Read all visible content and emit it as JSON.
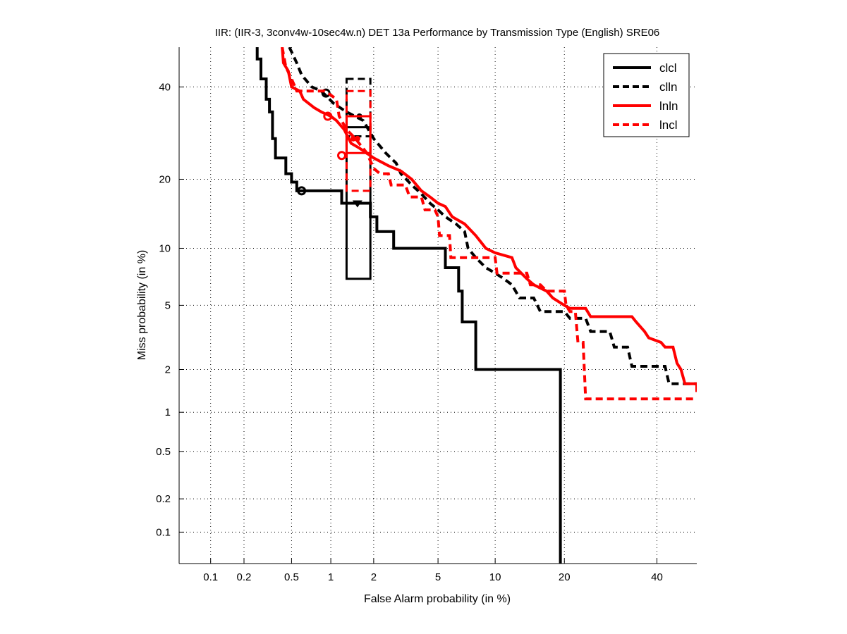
{
  "chart_data": {
    "type": "line",
    "subtype": "DET curve (normal-deviate / probit scale)",
    "title": "IIR: (IIR-3, 3conv4w-10sec4w.n) DET 13a Performance by Transmission Type (English) SRE06",
    "xlabel": "False Alarm probability (in %)",
    "ylabel": "Miss probability (in %)",
    "xlim": [
      0.05,
      50
    ],
    "ylim": [
      0.05,
      50
    ],
    "x_scale": "probit",
    "y_scale": "probit",
    "grid": true,
    "x_ticks": [
      0.1,
      0.2,
      0.5,
      1,
      2,
      5,
      10,
      20,
      40
    ],
    "x_tick_labels": [
      "0.1",
      "0.2",
      "0.5",
      "1",
      "2",
      "5",
      "10",
      "20",
      "40"
    ],
    "y_ticks": [
      0.1,
      0.2,
      0.5,
      1,
      2,
      5,
      10,
      20,
      40
    ],
    "y_tick_labels": [
      "0.1",
      "0.2",
      "0.5",
      "1",
      "2",
      "5",
      "10",
      "20",
      "40"
    ],
    "legend_position": "top-right",
    "colors": {
      "black": "#000000",
      "red": "#ff0000"
    },
    "series": [
      {
        "name": "clcl",
        "color": "#000000",
        "style": "solid",
        "points": [
          [
            0.26,
            50
          ],
          [
            0.26,
            47
          ],
          [
            0.28,
            47
          ],
          [
            0.28,
            42
          ],
          [
            0.31,
            42
          ],
          [
            0.31,
            37
          ],
          [
            0.33,
            37
          ],
          [
            0.33,
            34
          ],
          [
            0.35,
            34
          ],
          [
            0.35,
            28
          ],
          [
            0.37,
            28
          ],
          [
            0.37,
            24
          ],
          [
            0.45,
            24
          ],
          [
            0.45,
            21
          ],
          [
            0.5,
            21
          ],
          [
            0.5,
            19.5
          ],
          [
            0.55,
            19.5
          ],
          [
            0.55,
            18
          ],
          [
            1.2,
            18
          ],
          [
            1.2,
            16
          ],
          [
            1.9,
            16
          ],
          [
            1.9,
            14
          ],
          [
            2.1,
            14
          ],
          [
            2.1,
            12
          ],
          [
            2.7,
            12
          ],
          [
            2.7,
            10
          ],
          [
            5.5,
            10
          ],
          [
            5.5,
            8
          ],
          [
            6.5,
            8
          ],
          [
            6.5,
            6
          ],
          [
            6.8,
            6
          ],
          [
            6.8,
            4
          ],
          [
            8,
            4
          ],
          [
            8,
            2
          ],
          [
            19.3,
            2
          ],
          [
            19.3,
            0.05
          ]
        ],
        "operating_point": {
          "marker": "circle",
          "x": 0.6,
          "y": 18
        },
        "confidence_box": {
          "x": [
            1.3,
            1.9
          ],
          "y": [
            7,
            30.5
          ]
        },
        "min_point": {
          "marker": "triangle-down",
          "x": 1.55,
          "y": 16
        }
      },
      {
        "name": "clln",
        "color": "#000000",
        "style": "dashed",
        "points": [
          [
            0.48,
            50
          ],
          [
            0.55,
            46
          ],
          [
            0.6,
            43
          ],
          [
            0.72,
            40
          ],
          [
            0.85,
            39
          ],
          [
            1.05,
            36
          ],
          [
            1.3,
            34
          ],
          [
            1.7,
            32
          ],
          [
            2,
            28
          ],
          [
            2.4,
            25
          ],
          [
            2.8,
            23
          ],
          [
            3,
            21
          ],
          [
            3.5,
            19
          ],
          [
            4,
            17.5
          ],
          [
            4.5,
            16
          ],
          [
            5,
            15
          ],
          [
            5.5,
            14
          ],
          [
            6.3,
            13
          ],
          [
            7,
            12
          ],
          [
            7.3,
            10
          ],
          [
            8,
            9
          ],
          [
            9,
            8
          ],
          [
            10,
            7.5
          ],
          [
            11,
            7
          ],
          [
            12,
            6.5
          ],
          [
            13,
            5.5
          ],
          [
            15,
            5.5
          ],
          [
            16,
            4.6
          ],
          [
            20,
            4.6
          ],
          [
            21,
            4.2
          ],
          [
            24,
            4.2
          ],
          [
            25,
            3.5
          ],
          [
            29,
            3.5
          ],
          [
            30,
            2.8
          ],
          [
            33,
            2.8
          ],
          [
            34,
            2.1
          ],
          [
            42,
            2.1
          ],
          [
            43,
            1.6
          ],
          [
            50,
            1.6
          ]
        ],
        "operating_point": {
          "marker": "circle",
          "x": 0.92,
          "y": 38.5
        },
        "confidence_box": {
          "x": [
            1.3,
            1.9
          ],
          "y": [
            28.5,
            42
          ]
        },
        "min_point": {
          "marker": "circle",
          "x": 1.6,
          "y": 33
        }
      },
      {
        "name": "lnln",
        "color": "#ff0000",
        "style": "solid",
        "points": [
          [
            0.42,
            50
          ],
          [
            0.43,
            46
          ],
          [
            0.47,
            44
          ],
          [
            0.5,
            40
          ],
          [
            0.58,
            39
          ],
          [
            0.62,
            37
          ],
          [
            0.75,
            35
          ],
          [
            0.85,
            34
          ],
          [
            1.0,
            33
          ],
          [
            1.1,
            32
          ],
          [
            1.25,
            30
          ],
          [
            1.4,
            27
          ],
          [
            1.6,
            26
          ],
          [
            2,
            24
          ],
          [
            2.5,
            22.5
          ],
          [
            3,
            21.5
          ],
          [
            3.5,
            20
          ],
          [
            4,
            18
          ],
          [
            4.5,
            17
          ],
          [
            5,
            16
          ],
          [
            5.5,
            15.5
          ],
          [
            6,
            14
          ],
          [
            7,
            13
          ],
          [
            8,
            11.5
          ],
          [
            9,
            10
          ],
          [
            10,
            9.5
          ],
          [
            12,
            9
          ],
          [
            12.5,
            8
          ],
          [
            14,
            7
          ],
          [
            15,
            6.5
          ],
          [
            17,
            6
          ],
          [
            18,
            5.5
          ],
          [
            20,
            5
          ],
          [
            21,
            4.8
          ],
          [
            24,
            4.8
          ],
          [
            25,
            4.3
          ],
          [
            34,
            4.3
          ],
          [
            35,
            4
          ],
          [
            37,
            3.5
          ],
          [
            38,
            3.2
          ],
          [
            41,
            3
          ],
          [
            42,
            2.8
          ],
          [
            44,
            2.8
          ],
          [
            45,
            2.2
          ],
          [
            46,
            2
          ],
          [
            47,
            1.6
          ],
          [
            50,
            1.6
          ],
          [
            50,
            1.4
          ]
        ],
        "operating_point": {
          "marker": "circle",
          "x": 0.95,
          "y": 33
        },
        "confidence_box": {
          "x": [
            1.3,
            1.9
          ],
          "y": [
            25,
            33
          ]
        },
        "min_point": {
          "marker": "circle",
          "x": 1.45,
          "y": 28
        }
      },
      {
        "name": "lncl",
        "color": "#ff0000",
        "style": "dashed",
        "points": [
          [
            0.42,
            50
          ],
          [
            0.45,
            45
          ],
          [
            0.5,
            42
          ],
          [
            0.55,
            39
          ],
          [
            0.9,
            39
          ],
          [
            1.0,
            38
          ],
          [
            1.1,
            37
          ],
          [
            1.15,
            33
          ],
          [
            1.3,
            30
          ],
          [
            1.5,
            28
          ],
          [
            1.8,
            25
          ],
          [
            2,
            22
          ],
          [
            2.2,
            21
          ],
          [
            2.5,
            21
          ],
          [
            2.6,
            19
          ],
          [
            3.2,
            19
          ],
          [
            3.4,
            17
          ],
          [
            4,
            17
          ],
          [
            4.2,
            15
          ],
          [
            4.8,
            15
          ],
          [
            5,
            14
          ],
          [
            5.1,
            11.5
          ],
          [
            5.8,
            11.5
          ],
          [
            5.9,
            9
          ],
          [
            10,
            9
          ],
          [
            10.2,
            7.5
          ],
          [
            14,
            7.5
          ],
          [
            14.5,
            6.5
          ],
          [
            16,
            6.5
          ],
          [
            17,
            6
          ],
          [
            20,
            6
          ],
          [
            20.3,
            5
          ],
          [
            21,
            4.6
          ],
          [
            22,
            4.6
          ],
          [
            22.5,
            3
          ],
          [
            23.5,
            3
          ],
          [
            24,
            1.25
          ],
          [
            50,
            1.25
          ]
        ],
        "operating_point": {
          "marker": "circle",
          "x": 1.2,
          "y": 24.5
        },
        "confidence_box": {
          "x": [
            1.3,
            1.9
          ],
          "y": [
            18,
            39
          ]
        },
        "min_point": {
          "marker": "circle",
          "x": 1.55,
          "y": 28
        }
      }
    ]
  }
}
